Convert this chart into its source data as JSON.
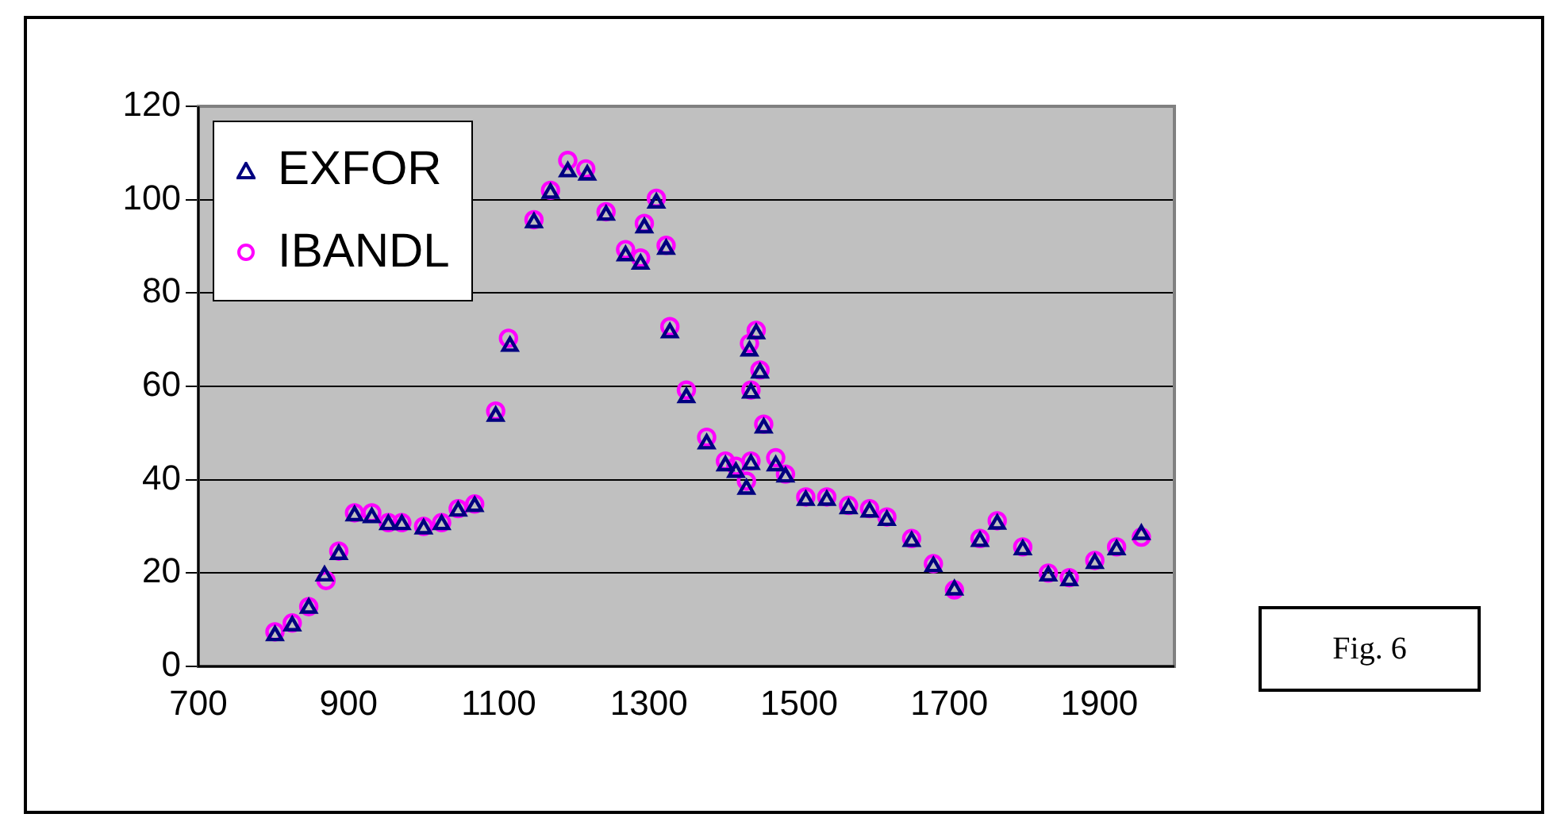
{
  "chart_data": {
    "type": "scatter",
    "xlim": [
      700,
      2000
    ],
    "xticks": [
      700,
      900,
      1100,
      1300,
      1500,
      1700,
      1900
    ],
    "ylim": [
      0,
      120
    ],
    "yticks": [
      0,
      20,
      40,
      60,
      80,
      100,
      120
    ],
    "grid": "y",
    "legend": "top left",
    "annotations": [
      "Fig. 6"
    ],
    "series": [
      {
        "name": "EXFOR",
        "color": "#000080",
        "marker": "triangle",
        "x": [
          802,
          825,
          847,
          868,
          887,
          908,
          931,
          953,
          971,
          1000,
          1024,
          1046,
          1068,
          1096,
          1115,
          1147,
          1169,
          1192,
          1218,
          1243,
          1269,
          1289,
          1294,
          1310,
          1323,
          1328,
          1350,
          1377,
          1402,
          1416,
          1430,
          1436,
          1436,
          1434,
          1443,
          1448,
          1453,
          1469,
          1482,
          1509,
          1537,
          1566,
          1594,
          1617,
          1650,
          1679,
          1707,
          1741,
          1764,
          1798,
          1832,
          1860,
          1894,
          1923,
          1956
        ],
        "values": [
          6.6,
          8.7,
          12.5,
          19.4,
          24.0,
          32.3,
          31.9,
          30.4,
          30.4,
          29.5,
          30.4,
          33.3,
          34.3,
          53.6,
          68.6,
          95.1,
          101.4,
          106.0,
          105.3,
          96.7,
          88.0,
          86.2,
          94.0,
          99.3,
          89.4,
          71.5,
          57.6,
          47.7,
          43.0,
          41.6,
          38.0,
          43.3,
          58.6,
          67.6,
          71.3,
          62.9,
          51.1,
          43.0,
          40.6,
          35.6,
          35.6,
          33.8,
          33.1,
          31.3,
          26.8,
          21.4,
          16.4,
          26.8,
          30.5,
          25.0,
          19.4,
          18.4,
          22.1,
          25.0,
          28.3
        ]
      },
      {
        "name": "IBANDL",
        "color": "#ff00ff",
        "marker": "circle",
        "x": [
          802,
          825,
          847,
          870,
          887,
          908,
          931,
          953,
          971,
          1000,
          1024,
          1046,
          1068,
          1096,
          1113,
          1147,
          1169,
          1192,
          1216,
          1243,
          1269,
          1289,
          1294,
          1310,
          1323,
          1328,
          1350,
          1377,
          1402,
          1416,
          1430,
          1436,
          1436,
          1434,
          1443,
          1448,
          1453,
          1469,
          1482,
          1509,
          1537,
          1566,
          1594,
          1617,
          1650,
          1679,
          1707,
          1741,
          1764,
          1798,
          1832,
          1860,
          1894,
          1923,
          1956
        ],
        "values": [
          7.4,
          9.3,
          12.8,
          18.4,
          24.7,
          32.9,
          32.9,
          30.8,
          30.8,
          30.0,
          30.8,
          33.8,
          34.8,
          54.7,
          70.3,
          95.7,
          102.0,
          108.4,
          106.6,
          97.4,
          89.3,
          87.5,
          94.9,
          100.3,
          90.2,
          72.8,
          59.2,
          49.1,
          44.0,
          42.9,
          39.7,
          44.0,
          59.2,
          69.2,
          72.0,
          63.5,
          51.9,
          44.7,
          41.2,
          36.3,
          36.3,
          34.5,
          33.8,
          32.0,
          27.4,
          22.0,
          16.4,
          27.4,
          31.2,
          25.6,
          20.0,
          19.0,
          22.7,
          25.6,
          27.7
        ]
      }
    ]
  }
}
